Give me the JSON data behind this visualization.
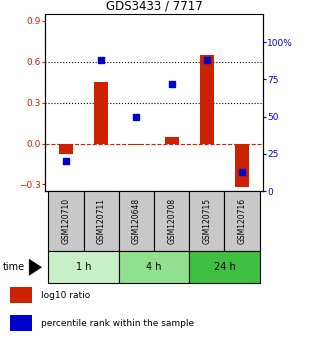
{
  "title": "GDS3433 / 7717",
  "samples": [
    "GSM120710",
    "GSM120711",
    "GSM120648",
    "GSM120708",
    "GSM120715",
    "GSM120716"
  ],
  "log10_ratio": [
    -0.08,
    0.45,
    -0.01,
    0.05,
    0.65,
    -0.32
  ],
  "percentile_rank": [
    20,
    88,
    50,
    72,
    88,
    13
  ],
  "ylim_left": [
    -0.35,
    0.95
  ],
  "ylim_right": [
    0,
    118.75
  ],
  "yticks_left": [
    -0.3,
    0.0,
    0.3,
    0.6,
    0.9
  ],
  "yticks_right": [
    0,
    25,
    50,
    75,
    100
  ],
  "hlines": [
    0.3,
    0.6
  ],
  "groups": [
    {
      "label": "1 h",
      "indices": [
        0,
        1
      ],
      "color": "#c8f0c8"
    },
    {
      "label": "4 h",
      "indices": [
        2,
        3
      ],
      "color": "#90e090"
    },
    {
      "label": "24 h",
      "indices": [
        4,
        5
      ],
      "color": "#40c040"
    }
  ],
  "bar_color": "#cc2200",
  "square_color": "#0000cc",
  "bar_width": 0.4,
  "square_size": 18,
  "time_label": "time",
  "legend_log10": "log10 ratio",
  "legend_percentile": "percentile rank within the sample",
  "sample_box_color": "#c8c8c8",
  "zero_line_color": "#cc2200",
  "dotted_line_color": "#000000",
  "background_color": "#ffffff"
}
